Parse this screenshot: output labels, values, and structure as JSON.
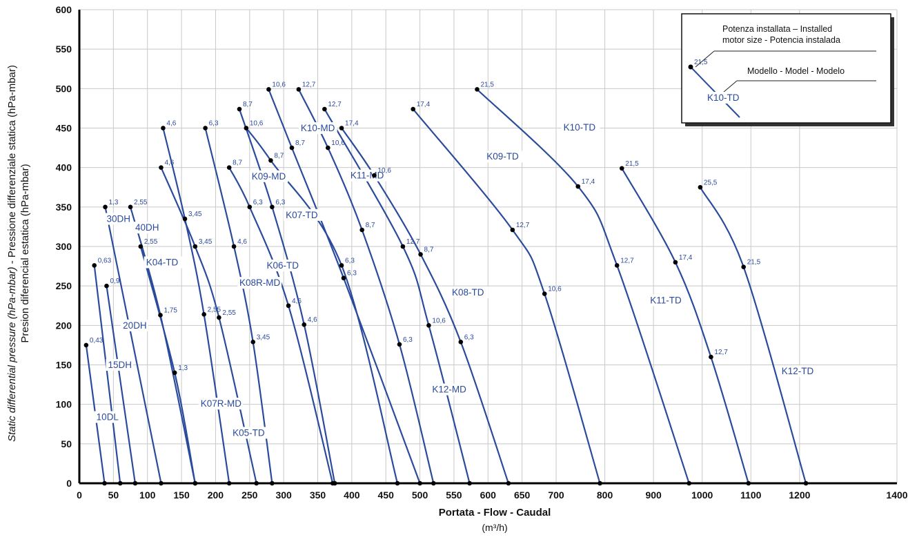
{
  "chart_data": {
    "type": "line",
    "xlabel": "Portata -  Flow - Caudal",
    "xunit": "(m³/h)",
    "ylabel_line1_italic": "Static differential pressure (hPa-mbar)",
    "ylabel_line1_rest": " - Pressione differenziale statica (hPa-mbar)",
    "ylabel_line2": "Presion diferencial estatica (hPa-mbar)",
    "xlim": [
      0,
      1400
    ],
    "ylim": [
      0,
      600
    ],
    "x_ticks": [
      0,
      50,
      100,
      150,
      200,
      250,
      300,
      350,
      400,
      450,
      500,
      550,
      600,
      650,
      700,
      800,
      900,
      1000,
      1100,
      1200,
      1400
    ],
    "y_ticks": [
      0,
      50,
      100,
      150,
      200,
      250,
      300,
      350,
      400,
      450,
      500,
      550,
      600
    ],
    "grid": true,
    "legend": {
      "placement": "top-right",
      "motor_text_line1": "Potenza installata – Installed",
      "motor_text_line2": "motor size - Potencia instalada",
      "model_text": "Modello - Model - Modelo",
      "example_value": "21,5",
      "example_model": "K10-TD"
    },
    "series": [
      {
        "name": "10DL",
        "label_at": [
          25,
          80
        ],
        "points": [
          [
            10,
            175,
            "0,43"
          ],
          [
            37,
            0,
            ""
          ]
        ]
      },
      {
        "name": "15DH",
        "label_at": [
          42,
          146
        ],
        "points": [
          [
            22,
            276,
            "0,63"
          ],
          [
            60,
            0,
            ""
          ]
        ]
      },
      {
        "name": "20DH",
        "label_at": [
          64,
          196
        ],
        "points": [
          [
            40,
            250,
            "0,9"
          ],
          [
            82,
            0,
            ""
          ]
        ]
      },
      {
        "name": "30DH",
        "label_at": [
          40,
          331
        ],
        "points": [
          [
            38,
            350,
            "1,3"
          ],
          [
            120,
            0,
            ""
          ]
        ]
      },
      {
        "name": "40DH",
        "label_at": [
          82,
          320
        ],
        "points": [
          [
            75,
            350,
            "2,55"
          ],
          [
            119,
            213,
            "1,75"
          ],
          [
            170,
            0,
            ""
          ]
        ]
      },
      {
        "name": "K04-TD",
        "label_at": [
          98,
          276
        ],
        "points": [
          [
            90,
            300,
            "2,55"
          ],
          [
            140,
            140,
            "1,3"
          ],
          [
            170,
            0,
            ""
          ]
        ]
      },
      {
        "name": "K07R-MD",
        "label_at": [
          178,
          97
        ],
        "points": [
          [
            123,
            450,
            "4,6"
          ],
          [
            155,
            335,
            "3,45"
          ],
          [
            183,
            214,
            "2,55"
          ],
          [
            220,
            0,
            ""
          ]
        ]
      },
      {
        "name": "K05-TD",
        "label_at": [
          225,
          60
        ],
        "points": [
          [
            120,
            400,
            "4,6"
          ],
          [
            170,
            300,
            "3,45"
          ],
          [
            205,
            210,
            "2,55"
          ],
          [
            260,
            0,
            ""
          ]
        ]
      },
      {
        "name": "K08R-MD",
        "label_at": [
          235,
          250
        ],
        "points": [
          [
            185,
            450,
            "6,3"
          ],
          [
            227,
            300,
            "4,6"
          ],
          [
            255,
            179,
            "3,45"
          ],
          [
            283,
            0,
            ""
          ]
        ]
      },
      {
        "name": "K06-TD",
        "label_at": [
          275,
          272
        ],
        "points": [
          [
            220,
            400,
            "8,7"
          ],
          [
            250,
            350,
            "6,3"
          ],
          [
            307,
            225,
            "4,6"
          ],
          [
            372,
            0,
            ""
          ]
        ]
      },
      {
        "name": "K09-MD",
        "label_at": [
          253,
          385
        ],
        "points": [
          [
            235,
            474,
            "8,7"
          ],
          [
            283,
            350,
            "6,3"
          ],
          [
            330,
            201,
            "4,6"
          ],
          [
            375,
            0,
            ""
          ]
        ]
      },
      {
        "name": "K07-TD",
        "label_at": [
          303,
          336
        ],
        "points": [
          [
            245,
            450,
            "10,6"
          ],
          [
            281,
            409,
            "8,7"
          ],
          [
            385,
            276,
            "6,3"
          ],
          [
            467,
            0,
            ""
          ]
        ]
      },
      {
        "name": "K10-MD",
        "label_at": [
          325,
          446
        ],
        "points": [
          [
            278,
            499,
            "10,6"
          ],
          [
            312,
            425,
            "8,7"
          ],
          [
            388,
            260,
            "6,3"
          ],
          [
            500,
            0,
            ""
          ]
        ]
      },
      {
        "name": "K11-MD",
        "label_at": [
          398,
          386
        ],
        "points": [
          [
            322,
            499,
            "12,7"
          ],
          [
            365,
            425,
            "10,6"
          ],
          [
            415,
            321,
            "8,7"
          ],
          [
            470,
            176,
            "6,3"
          ],
          [
            520,
            0,
            ""
          ]
        ]
      },
      {
        "name": "K12-MD",
        "label_at": [
          518,
          115
        ],
        "points": [
          [
            360,
            474,
            "12,7"
          ],
          [
            475,
            300,
            "12,7"
          ],
          [
            513,
            200,
            "10,6"
          ],
          [
            573,
            0,
            ""
          ]
        ]
      },
      {
        "name": "K08-TD",
        "label_at": [
          547,
          238
        ],
        "points": [
          [
            385,
            450,
            "17,4"
          ],
          [
            433,
            390,
            "10,6"
          ],
          [
            501,
            290,
            "8,7"
          ],
          [
            560,
            179,
            "6,3"
          ],
          [
            630,
            0,
            ""
          ]
        ]
      },
      {
        "name": "K09-TD",
        "label_at": [
          598,
          410
        ],
        "points": [
          [
            490,
            474,
            "17,4"
          ],
          [
            636,
            321,
            "12,7"
          ],
          [
            683,
            240,
            "10,6"
          ],
          [
            790,
            0,
            ""
          ]
        ]
      },
      {
        "name": "K10-TD",
        "label_at": [
          715,
          447
        ],
        "points": [
          [
            584,
            499,
            "21,5"
          ],
          [
            745,
            376,
            "17,4"
          ],
          [
            825,
            276,
            "12,7"
          ],
          [
            973,
            0,
            ""
          ]
        ]
      },
      {
        "name": "K11-TD",
        "label_at": [
          893,
          228
        ],
        "points": [
          [
            835,
            399,
            "21,5"
          ],
          [
            945,
            280,
            "17,4"
          ],
          [
            1018,
            160,
            "12,7"
          ],
          [
            1095,
            0,
            ""
          ]
        ]
      },
      {
        "name": "K12-TD",
        "label_at": [
          1163,
          138
        ],
        "points": [
          [
            996,
            375,
            "25,5"
          ],
          [
            1085,
            274,
            "21,5"
          ],
          [
            1213,
            0,
            ""
          ]
        ]
      }
    ]
  }
}
